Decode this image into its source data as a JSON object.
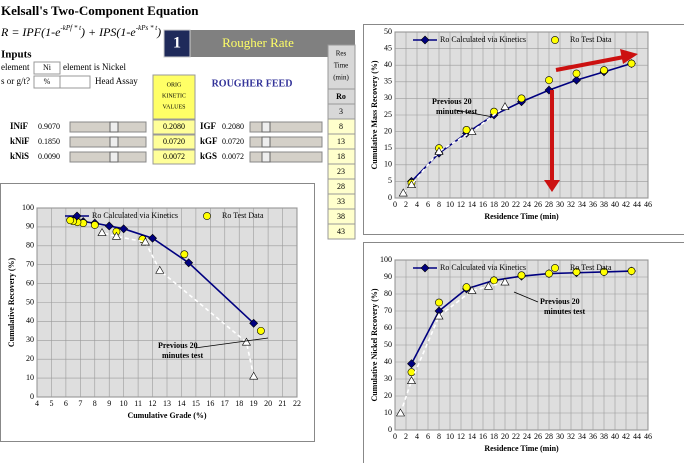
{
  "sheet": {
    "title": "Kelsall's Two-Component Equation",
    "formula": [
      "R = IPF(1-e",
      "-kPf * t",
      ") + IPS(1-e",
      "-kPs * t",
      ")"
    ],
    "step": "1",
    "banner": "Rougher Rate",
    "inputs": "Inputs",
    "element_label": "element",
    "element": "Ni",
    "element_note": "element is Nickel",
    "unit_label": "s or g/t?",
    "unit": "%",
    "head_assay": "Head Assay",
    "orig_kinetic": [
      "ORIG",
      "KINETIC",
      "VALUES"
    ],
    "feed": "ROUGHER FEED",
    "params": [
      {
        "label": "INiF",
        "value": "0.9070",
        "orig": "0.2080",
        "glabel": "IGF",
        "gvalue": "0.2080"
      },
      {
        "label": "kNiF",
        "value": "0.1850",
        "orig": "0.0720",
        "glabel": "kGF",
        "gvalue": "0.0720"
      },
      {
        "label": "kNiS",
        "value": "0.0090",
        "orig": "0.0072",
        "glabel": "kGS",
        "gvalue": "0.0072"
      }
    ],
    "res_header": [
      "Res",
      "Time",
      "(min)"
    ],
    "res_sub": "Ro",
    "res_times": [
      3,
      8,
      13,
      18,
      23,
      28,
      33,
      38,
      43
    ]
  },
  "chart_data": [
    {
      "type": "scatter",
      "xlabel": "Residence Time (min)",
      "ylabel": "Cumulative  Mass Recovery (%)",
      "annotation": [
        "Previous 20",
        "minutes test"
      ],
      "xlim": [
        0,
        46
      ],
      "xticks": [
        0,
        2,
        4,
        6,
        8,
        10,
        12,
        14,
        16,
        18,
        20,
        22,
        24,
        26,
        28,
        30,
        32,
        34,
        36,
        38,
        40,
        42,
        44,
        46
      ],
      "ylim": [
        0,
        50
      ],
      "yticks": [
        0,
        5,
        10,
        15,
        20,
        25,
        30,
        35,
        40,
        45,
        50
      ],
      "grid": true,
      "series": [
        {
          "name": "Ro Calculated via Kinetics",
          "color": "#000080",
          "marker": "diamond",
          "line": "solid",
          "x": [
            3,
            8,
            13,
            18,
            23,
            28,
            33,
            38,
            43
          ],
          "values": [
            5,
            13.5,
            19.5,
            25,
            29,
            32.5,
            35.5,
            38,
            40.5
          ]
        },
        {
          "name": "Ro Test Data",
          "color": "#ffff00",
          "marker": "circle",
          "line": "none",
          "x": [
            3,
            8,
            13,
            18,
            23,
            28,
            33,
            38,
            43
          ],
          "values": [
            4.5,
            15,
            20.5,
            26,
            30,
            35.5,
            37.5,
            38.5,
            40.5
          ]
        },
        {
          "color": "#ffffff",
          "marker": "triangle",
          "line": "dashed",
          "x": [
            1.5,
            3,
            8,
            14,
            20
          ],
          "values": [
            1.5,
            4,
            14,
            20,
            27.5
          ]
        }
      ]
    },
    {
      "type": "scatter",
      "xlabel": "Residence Time (min)",
      "ylabel": "Cumulative  Nickel Recovery (%)",
      "annotation": [
        "Previous 20",
        "minutes test"
      ],
      "xlim": [
        0,
        46
      ],
      "xticks": [
        0,
        2,
        4,
        6,
        8,
        10,
        12,
        14,
        16,
        18,
        20,
        22,
        24,
        26,
        28,
        30,
        32,
        34,
        36,
        38,
        40,
        42,
        44,
        46
      ],
      "ylim": [
        0,
        100
      ],
      "yticks": [
        0,
        10,
        20,
        30,
        40,
        50,
        60,
        70,
        80,
        90,
        100
      ],
      "grid": true,
      "series": [
        {
          "name": "Ro Calculated via Kinetics",
          "color": "#000080",
          "marker": "diamond",
          "line": "solid",
          "x": [
            3,
            8,
            13,
            18,
            23,
            28,
            33,
            38,
            43
          ],
          "values": [
            39,
            70,
            83,
            88,
            90.5,
            92,
            92.5,
            93,
            93.5
          ]
        },
        {
          "name": "Ro Test Data",
          "color": "#ffff00",
          "marker": "circle",
          "line": "none",
          "x": [
            3,
            8,
            13,
            18,
            23,
            28,
            33,
            38,
            43
          ],
          "values": [
            34,
            75,
            84,
            88,
            91,
            92,
            93,
            93,
            93.5
          ]
        },
        {
          "color": "#ffffff",
          "marker": "triangle",
          "line": "dashed",
          "x": [
            1,
            3,
            8,
            14,
            17,
            20
          ],
          "values": [
            10,
            29,
            67,
            82,
            84.5,
            87
          ]
        }
      ]
    },
    {
      "type": "scatter",
      "xlabel": "Cumulative Grade (%)",
      "ylabel": "Cumulative Recovery (%)",
      "annotation": [
        "Previous 20",
        "minutes test"
      ],
      "xlim": [
        4,
        22
      ],
      "xticks": [
        4,
        5,
        6,
        7,
        8,
        9,
        10,
        11,
        12,
        13,
        14,
        15,
        16,
        17,
        18,
        19,
        20,
        21,
        22
      ],
      "ylim": [
        0,
        100
      ],
      "yticks": [
        0,
        10,
        20,
        30,
        40,
        50,
        60,
        70,
        80,
        90,
        100
      ],
      "grid": true,
      "series": [
        {
          "name": "Ro Calculated via Kinetics",
          "color": "#000080",
          "marker": "diamond",
          "line": "solid",
          "x": [
            19,
            14.5,
            12,
            10,
            9,
            8,
            7.2,
            6.8,
            6.5
          ],
          "values": [
            39,
            71,
            84,
            89,
            90.5,
            92,
            92.8,
            93.2,
            93.5
          ]
        },
        {
          "name": "Ro Test Data",
          "color": "#ffff00",
          "marker": "circle",
          "line": "none",
          "x": [
            19.5,
            14.2,
            11.3,
            9.5,
            8,
            7.2,
            6.8,
            6.5,
            6.3
          ],
          "values": [
            35,
            75.5,
            83.5,
            87.5,
            91,
            92,
            92.5,
            93,
            93.5
          ]
        },
        {
          "color": "#ffffff",
          "marker": "triangle",
          "line": "dashed",
          "x": [
            19,
            18.5,
            12.5,
            11.5,
            9.5,
            8.5
          ],
          "values": [
            11,
            29,
            67,
            82,
            85,
            87
          ]
        }
      ]
    }
  ]
}
